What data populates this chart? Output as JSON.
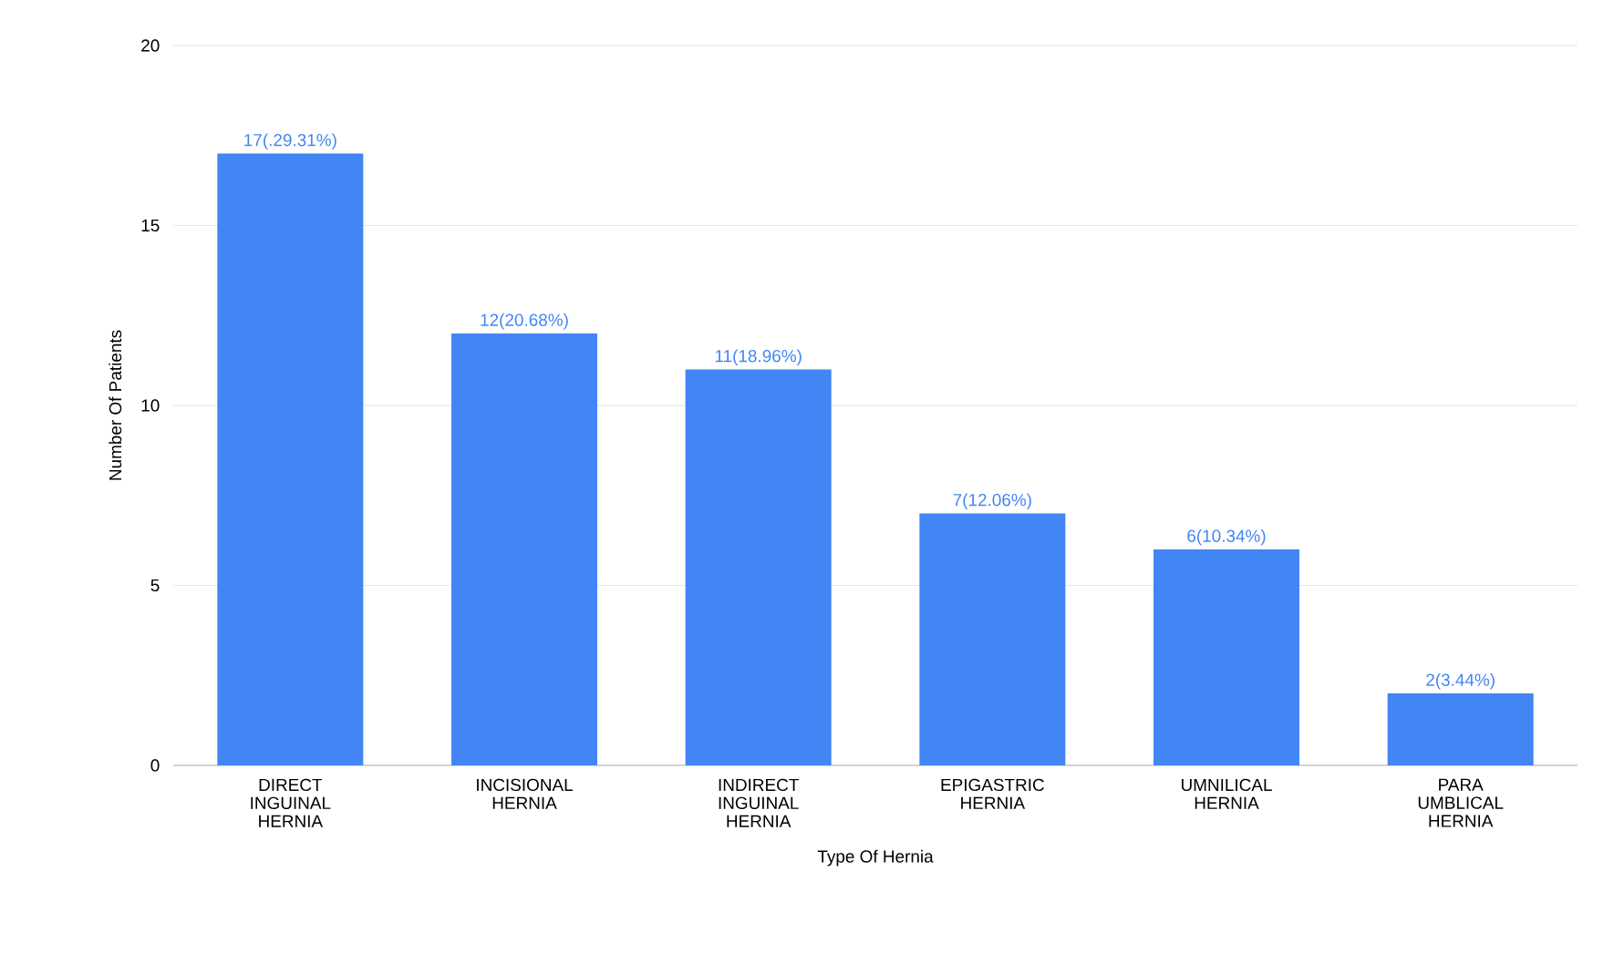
{
  "chart_data": {
    "type": "bar",
    "xlabel": "Type Of Hernia",
    "ylabel": "Number Of Patients",
    "categories": [
      "DIRECT INGUINAL HERNIA",
      "INCISIONAL HERNIA",
      "INDIRECT INGUINAL HERNIA",
      "EPIGASTRIC HERNIA",
      "UMNILICAL HERNIA",
      "PARA UMBLICAL HERNIA"
    ],
    "values": [
      17,
      12,
      11,
      7,
      6,
      2
    ],
    "value_labels": [
      "17(.29.31%)",
      "12(20.68%)",
      "11(18.96%)",
      "7(12.06%)",
      "6(10.34%)",
      "2(3.44%)"
    ],
    "color": "#4285f4",
    "ylim": [
      0,
      20
    ],
    "yticks": [
      0,
      5,
      10,
      15,
      20
    ],
    "grid": "y"
  }
}
